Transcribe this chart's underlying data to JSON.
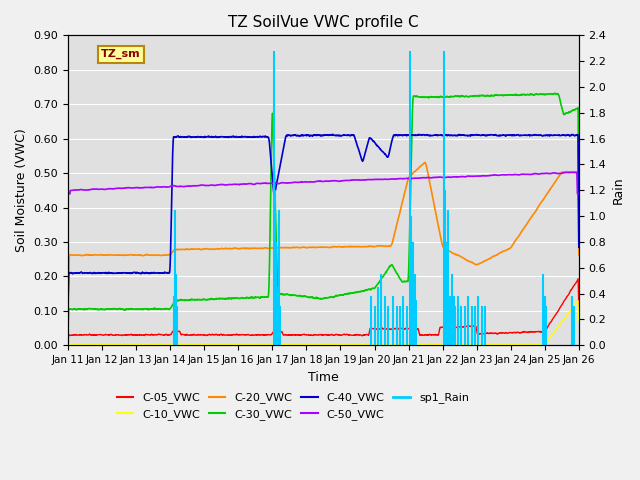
{
  "title": "TZ SoilVue VWC profile C",
  "xlabel": "Time",
  "ylabel_left": "Soil Moisture (VWC)",
  "ylabel_right": "Rain",
  "xlim": [
    0,
    15
  ],
  "ylim_left": [
    0,
    0.9
  ],
  "ylim_right": [
    0,
    2.4
  ],
  "xtick_labels": [
    "Jan 11",
    "Jan 12",
    "Jan 13",
    "Jan 14",
    "Jan 15",
    "Jan 16",
    "Jan 17",
    "Jan 18",
    "Jan 19",
    "Jan 20",
    "Jan 21",
    "Jan 22",
    "Jan 23",
    "Jan 24",
    "Jan 25",
    "Jan 26"
  ],
  "yticks_left": [
    0.0,
    0.1,
    0.2,
    0.3,
    0.4,
    0.5,
    0.6,
    0.7,
    0.8,
    0.9
  ],
  "yticks_right": [
    0.0,
    0.2,
    0.4,
    0.6,
    0.8,
    1.0,
    1.2,
    1.4,
    1.6,
    1.8,
    2.0,
    2.2,
    2.4
  ],
  "legend_label": "TZ_sm",
  "series_colors": {
    "C-05_VWC": "#ff0000",
    "C-10_VWC": "#ffff00",
    "C-20_VWC": "#ff8800",
    "C-30_VWC": "#00cc00",
    "C-40_VWC": "#0000cc",
    "C-50_VWC": "#aa00ff",
    "sp1_Rain": "#00ccff"
  },
  "fig_bg_color": "#f0f0f0",
  "plot_bg_color": "#e0e0e0",
  "grid_color": "#ffffff",
  "rain_events": [
    [
      3.1,
      0.38
    ],
    [
      3.12,
      0.3
    ],
    [
      3.15,
      1.05
    ],
    [
      3.17,
      0.55
    ],
    [
      3.19,
      0.3
    ],
    [
      6.05,
      2.28
    ],
    [
      6.07,
      1.2
    ],
    [
      6.09,
      0.55
    ],
    [
      6.12,
      0.8
    ],
    [
      6.15,
      0.45
    ],
    [
      6.17,
      0.35
    ],
    [
      6.2,
      1.05
    ],
    [
      6.22,
      0.3
    ],
    [
      8.9,
      0.38
    ],
    [
      9.0,
      0.3
    ],
    [
      9.1,
      0.45
    ],
    [
      9.2,
      0.55
    ],
    [
      9.3,
      0.38
    ],
    [
      9.4,
      0.3
    ],
    [
      9.55,
      0.38
    ],
    [
      9.65,
      0.3
    ],
    [
      9.75,
      0.3
    ],
    [
      9.85,
      0.38
    ],
    [
      9.95,
      0.3
    ],
    [
      10.05,
      2.28
    ],
    [
      10.07,
      1.0
    ],
    [
      10.09,
      0.65
    ],
    [
      10.12,
      0.8
    ],
    [
      10.15,
      0.45
    ],
    [
      10.17,
      0.3
    ],
    [
      10.19,
      0.55
    ],
    [
      10.22,
      0.35
    ],
    [
      11.05,
      2.28
    ],
    [
      11.07,
      1.2
    ],
    [
      11.09,
      0.55
    ],
    [
      11.11,
      0.8
    ],
    [
      11.13,
      0.45
    ],
    [
      11.15,
      0.35
    ],
    [
      11.17,
      1.05
    ],
    [
      11.19,
      0.3
    ],
    [
      11.22,
      0.38
    ],
    [
      11.25,
      0.3
    ],
    [
      11.28,
      0.55
    ],
    [
      11.32,
      0.38
    ],
    [
      11.35,
      0.3
    ],
    [
      11.45,
      0.38
    ],
    [
      11.55,
      0.3
    ],
    [
      11.65,
      0.3
    ],
    [
      11.75,
      0.38
    ],
    [
      11.85,
      0.3
    ],
    [
      11.95,
      0.3
    ],
    [
      12.05,
      0.38
    ],
    [
      12.15,
      0.3
    ],
    [
      12.25,
      0.3
    ],
    [
      13.95,
      0.55
    ],
    [
      14.0,
      0.38
    ],
    [
      14.05,
      0.3
    ],
    [
      14.8,
      0.38
    ],
    [
      14.85,
      0.3
    ]
  ]
}
